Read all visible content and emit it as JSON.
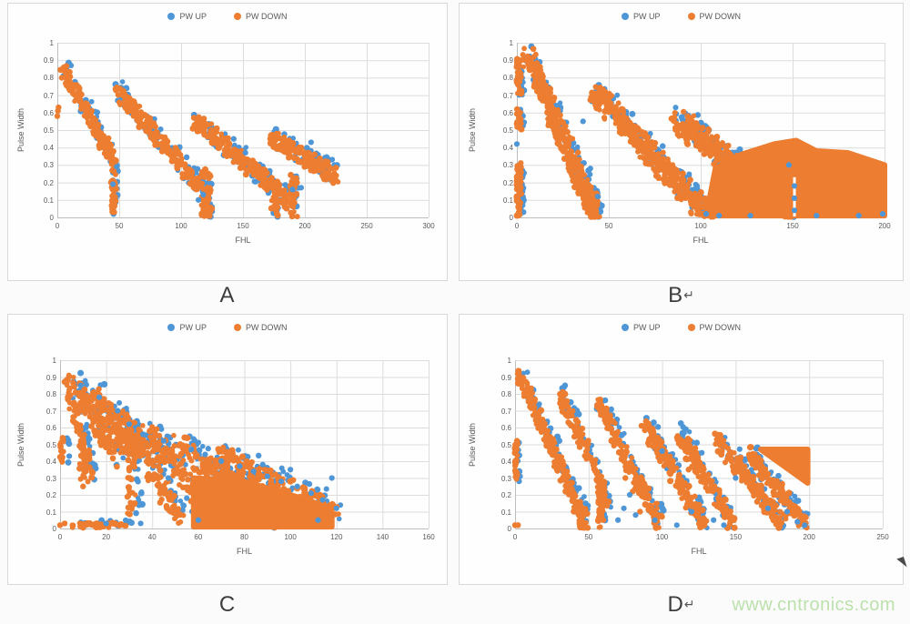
{
  "page": {
    "watermark": "www.cntronics.com",
    "captions": [
      {
        "label": "A",
        "mark": ""
      },
      {
        "label": "B",
        "mark": "↵"
      },
      {
        "label": "C",
        "mark": ""
      },
      {
        "label": "D",
        "mark": "↵"
      }
    ]
  },
  "legend": {
    "items": [
      {
        "label": "PW UP",
        "color": "#4E96D6"
      },
      {
        "label": "PW DOWN",
        "color": "#ED7D31"
      }
    ]
  },
  "colors": {
    "pw_up": "#4E96D6",
    "pw_down": "#ED7D31",
    "grid": "#dcdcdc",
    "axis": "#bfbfbf",
    "tick_text": "#595959",
    "caption_text": "#3d3d3d",
    "watermark_text": "#bce1ad",
    "panel_border": "#d8d8d8"
  },
  "chart_data": [
    {
      "id": "A",
      "type": "scatter",
      "grid": true,
      "legend_position": "top-center",
      "xlabel": "FHL",
      "ylabel": "Pulse Width",
      "xlim": [
        0,
        300
      ],
      "ylim": [
        0,
        1
      ],
      "x_ticks": [
        0,
        50,
        100,
        150,
        200,
        250,
        300
      ],
      "y_ticks": [
        "1",
        "0.9",
        "0.8",
        "0.7",
        "0.6",
        "0.5",
        "0.4",
        "0.3",
        "0.2",
        "0.1",
        "0"
      ],
      "series": [
        {
          "name": "PW UP",
          "color": "#4E96D6",
          "role": "under",
          "shadow_dx": 1.2,
          "points": [
            [
              48,
              0.29
            ],
            [
              45,
              0.19
            ],
            [
              114,
              0.1
            ],
            [
              118,
              0.13
            ],
            [
              190,
              0.16
            ],
            [
              197,
              0.17
            ],
            [
              205,
              0.43
            ],
            [
              152,
              0.37
            ]
          ]
        },
        {
          "name": "PW DOWN",
          "color": "#ED7D31",
          "bands": [
            [
              4,
              0.86,
              44,
              0.34,
              0.05,
              130,
              2.5
            ],
            [
              47,
              0.73,
              117,
              0.16,
              0.05,
              200,
              3
            ],
            [
              110,
              0.56,
              190,
              0.08,
              0.05,
              210,
              3
            ],
            [
              172,
              0.46,
              226,
              0.23,
              0.05,
              140,
              3
            ]
          ],
          "strips": [
            [
              45.5,
              0.02,
              0.33,
              50,
              2
            ],
            [
              120,
              0.0,
              0.27,
              60,
              4
            ],
            [
              176,
              0.0,
              0.2,
              32,
              3
            ],
            [
              191,
              0.0,
              0.25,
              38,
              3
            ]
          ],
          "polys": [],
          "points": [
            [
              0,
              0.58
            ],
            [
              0.5,
              0.61
            ],
            [
              1,
              0.63
            ],
            [
              46,
              0.03
            ],
            [
              118,
              0.02
            ],
            [
              125,
              0.05
            ],
            [
              222,
              0.21
            ]
          ]
        }
      ],
      "white_seams": []
    },
    {
      "id": "B",
      "type": "scatter",
      "grid": true,
      "legend_position": "top-center",
      "xlabel": "FHL",
      "ylabel": "Pulse Width",
      "xlim": [
        0,
        200
      ],
      "ylim": [
        0,
        1
      ],
      "x_ticks": [
        0,
        50,
        100,
        150,
        200
      ],
      "y_ticks": [
        "1",
        "0.9",
        "0.8",
        "0.7",
        "0.6",
        "0.5",
        "0.4",
        "0.3",
        "0.2",
        "0.1",
        "0"
      ],
      "series": [
        {
          "name": "PW UP",
          "color": "#4E96D6",
          "role": "under",
          "shadow_dx": 1.5,
          "points": [
            [
              0,
              0.42
            ],
            [
              36,
              0.55
            ],
            [
              40,
              0.28
            ],
            [
              44,
              0.12
            ],
            [
              98,
              0.18
            ],
            [
              103,
              0.02
            ],
            [
              148,
              0.3
            ],
            [
              151,
              0.04
            ],
            [
              151,
              0.11
            ],
            [
              151,
              0.18
            ],
            [
              110,
              0.01
            ],
            [
              127,
              0.01
            ],
            [
              163,
              0.01
            ],
            [
              186,
              0.01
            ],
            [
              199,
              0.02
            ]
          ]
        },
        {
          "name": "PW DOWN",
          "color": "#ED7D31",
          "bands": [
            [
              6,
              0.93,
              42,
              0.02,
              0.05,
              320,
              3.5
            ],
            [
              42,
              0.72,
              103,
              0.02,
              0.05,
              380,
              4.5
            ],
            [
              88,
              0.55,
              148,
              0.03,
              0.06,
              400,
              5.5
            ]
          ],
          "strips": [
            [
              1,
              0.0,
              0.3,
              60,
              1.5
            ],
            [
              1,
              0.5,
              0.62,
              20,
              1.5
            ],
            [
              1,
              0.7,
              0.9,
              34,
              1.5
            ],
            [
              41,
              0.0,
              0.15,
              45,
              3
            ]
          ],
          "polys": [
            [
              [
                103,
                0.01
              ],
              [
                108,
                0.28
              ],
              [
                122,
                0.36
              ],
              [
                140,
                0.42
              ],
              [
                152,
                0.44
              ],
              [
                163,
                0.38
              ],
              [
                180,
                0.37
              ],
              [
                200,
                0.3
              ],
              [
                200,
                0.01
              ]
            ]
          ],
          "points": [
            [
              5,
              0.9
            ],
            [
              0,
              0.89
            ]
          ]
        }
      ],
      "white_seams": [
        [
          151,
          0.005,
          0.23
        ]
      ]
    },
    {
      "id": "C",
      "type": "scatter",
      "grid": true,
      "legend_position": "top-center",
      "xlabel": "FHL",
      "ylabel": "Pulse Width",
      "xlim": [
        0,
        160
      ],
      "ylim": [
        0,
        1
      ],
      "x_ticks": [
        0,
        20,
        40,
        60,
        80,
        100,
        120,
        140,
        160
      ],
      "y_ticks": [
        "1",
        "0.9",
        "0.8",
        "0.7",
        "0.6",
        "0.5",
        "0.4",
        "0.3",
        "0.2",
        "0.1",
        "0"
      ],
      "series": [
        {
          "name": "PW UP",
          "color": "#4E96D6",
          "role": "under",
          "shadow_dx": 3,
          "points": [
            [
              30,
              0.62
            ],
            [
              36,
              0.56
            ],
            [
              45,
              0.52
            ],
            [
              57,
              0.47
            ],
            [
              63,
              0.44
            ],
            [
              70,
              0.4
            ],
            [
              78,
              0.37
            ],
            [
              84,
              0.34
            ],
            [
              90,
              0.31
            ],
            [
              96,
              0.28
            ],
            [
              103,
              0.25
            ],
            [
              109,
              0.21
            ],
            [
              114,
              0.17
            ],
            [
              120,
              0.12
            ],
            [
              118,
              0.3
            ],
            [
              100,
              0.35
            ],
            [
              88,
              0.38
            ],
            [
              25,
              0.7
            ],
            [
              17,
              0.78
            ],
            [
              9,
              0.85
            ],
            [
              35,
              0.03
            ],
            [
              20,
              0.03
            ],
            [
              60,
              0.05
            ],
            [
              112,
              0.05
            ],
            [
              4,
              0.43
            ],
            [
              47,
              0.3
            ],
            [
              55,
              0.18
            ]
          ]
        },
        {
          "name": "PW DOWN",
          "color": "#ED7D31",
          "bands": [
            [
              3,
              0.88,
              13,
              0.33,
              0.055,
              80,
              1.5
            ],
            [
              7,
              0.87,
              24,
              0.4,
              0.055,
              90,
              2
            ],
            [
              13,
              0.82,
              30,
              0.45,
              0.055,
              90,
              2
            ],
            [
              20,
              0.72,
              34,
              0.46,
              0.05,
              70,
              2
            ],
            [
              28,
              0.65,
              52,
              0.05,
              0.055,
              130,
              2.5
            ],
            [
              38,
              0.57,
              70,
              0.03,
              0.055,
              150,
              3
            ],
            [
              52,
              0.5,
              92,
              0.03,
              0.06,
              180,
              3.5
            ],
            [
              65,
              0.45,
              118,
              0.08,
              0.07,
              210,
              4
            ],
            [
              5,
              0.02,
              28,
              0.02,
              0.015,
              45,
              2
            ]
          ],
          "strips": [
            [
              0.5,
              0.4,
              0.55,
              16,
              1
            ],
            [
              31,
              0.08,
              0.55,
              40,
              1.8
            ],
            [
              10,
              0.3,
              0.45,
              22,
              1.5
            ]
          ],
          "polys": [
            [
              [
                58,
                0.01
              ],
              [
                58,
                0.3
              ],
              [
                80,
                0.28
              ],
              [
                100,
                0.2
              ],
              [
                118,
                0.12
              ],
              [
                118,
                0.01
              ]
            ]
          ],
          "points": [
            [
              0,
              0.02
            ],
            [
              2,
              0.03
            ],
            [
              10,
              0.25
            ]
          ]
        }
      ],
      "white_seams": []
    },
    {
      "id": "D",
      "type": "scatter",
      "grid": true,
      "legend_position": "top-center",
      "xlabel": "FHL",
      "ylabel": "Pulse Width",
      "xlim": [
        0,
        250
      ],
      "ylim": [
        0,
        1
      ],
      "x_ticks": [
        0,
        50,
        100,
        150,
        200,
        250
      ],
      "y_ticks": [
        "1",
        "0.9",
        "0.8",
        "0.7",
        "0.6",
        "0.5",
        "0.4",
        "0.3",
        "0.2",
        "0.1",
        "0"
      ],
      "series": [
        {
          "name": "PW UP",
          "color": "#4E96D6",
          "role": "under",
          "shadow_dx": 2,
          "points": [
            [
              70,
              0.05
            ],
            [
              74,
              0.12
            ],
            [
              78,
              0.2
            ],
            [
              82,
              0.08
            ],
            [
              95,
              0.05
            ],
            [
              100,
              0.46
            ],
            [
              120,
              0.1
            ],
            [
              135,
              0.05
            ],
            [
              150,
              0.3
            ],
            [
              172,
              0.12
            ],
            [
              185,
              0.1
            ],
            [
              192,
              0.04
            ],
            [
              197,
              0.02
            ],
            [
              48,
              0.15
            ],
            [
              110,
              0.02
            ],
            [
              142,
              0.02
            ],
            [
              127,
              0.45
            ]
          ]
        },
        {
          "name": "PW DOWN",
          "color": "#ED7D31",
          "bands": [
            [
              3,
              0.91,
              25,
              0.48,
              0.05,
              90,
              2
            ],
            [
              25,
              0.48,
              48,
              0.03,
              0.05,
              90,
              2
            ],
            [
              30,
              0.8,
              52,
              0.42,
              0.05,
              80,
              2
            ],
            [
              52,
              0.42,
              62,
              0.15,
              0.05,
              40,
              2
            ],
            [
              55,
              0.76,
              98,
              0.03,
              0.05,
              170,
              2.5
            ],
            [
              88,
              0.62,
              128,
              0.03,
              0.05,
              160,
              2.5
            ],
            [
              110,
              0.58,
              148,
              0.03,
              0.05,
              150,
              2.5
            ],
            [
              138,
              0.52,
              182,
              0.03,
              0.05,
              160,
              2.5
            ],
            [
              160,
              0.45,
              197,
              0.02,
              0.05,
              120,
              2.5
            ]
          ],
          "strips": [
            [
              0.5,
              0.28,
              0.52,
              24,
              1
            ],
            [
              45,
              0.0,
              0.12,
              20,
              1.5
            ],
            [
              58,
              0.0,
              0.3,
              32,
              1.8
            ]
          ],
          "polys": [
            [
              [
                167,
                0.47
              ],
              [
                199,
                0.47
              ],
              [
                199,
                0.27
              ]
            ]
          ],
          "points": [
            [
              0,
              0.02
            ],
            [
              2,
              0.02
            ],
            [
              75,
              0.3
            ],
            [
              80,
              0.22
            ],
            [
              130,
              0.28
            ],
            [
              85,
              0.1
            ],
            [
              118,
              0.35
            ],
            [
              152,
              0.35
            ],
            [
              60,
              0.05
            ]
          ]
        }
      ],
      "white_seams": []
    }
  ]
}
